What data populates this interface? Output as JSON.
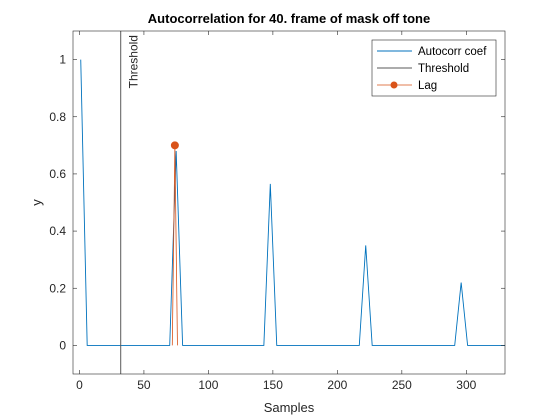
{
  "chart_data": {
    "type": "line",
    "title": "Autocorrelation for 40. frame of mask off tone",
    "xlabel": "Samples",
    "ylabel": "y",
    "xlim": [
      -5,
      330
    ],
    "ylim": [
      -0.1,
      1.1
    ],
    "xticks": [
      0,
      50,
      100,
      150,
      200,
      250,
      300
    ],
    "yticks": [
      0,
      0.2,
      0.4,
      0.6,
      0.8,
      1
    ],
    "ytick_labels": [
      "0",
      "0.2",
      "0.4",
      "0.6",
      "0.8",
      "1"
    ],
    "grid": false,
    "legend_position": "top-right",
    "series": [
      {
        "name": "Autocorr coef",
        "color": "#0072BD",
        "x": [
          1,
          6,
          7,
          70,
          75,
          80,
          81,
          143,
          148,
          153,
          154,
          217,
          222,
          227,
          228,
          291,
          296,
          301,
          302,
          330
        ],
        "y": [
          1.0,
          0,
          0,
          0,
          0.68,
          0,
          0,
          0,
          0.565,
          0,
          0,
          0,
          0.35,
          0,
          0,
          0,
          0.22,
          0,
          0,
          0
        ]
      },
      {
        "name": "Threshold",
        "color": "#595959",
        "x": [
          32,
          32
        ],
        "y": [
          -0.1,
          1.1
        ]
      },
      {
        "name": "Lag",
        "color": "#D95319",
        "x": [
          74
        ],
        "y": [
          0.7
        ]
      }
    ],
    "lag_stem": {
      "x": [
        72,
        74,
        76
      ],
      "y": [
        0,
        0.7,
        0
      ]
    },
    "annotations": [
      {
        "text": "Threshold",
        "x": 32,
        "y": 1.1
      }
    ]
  }
}
